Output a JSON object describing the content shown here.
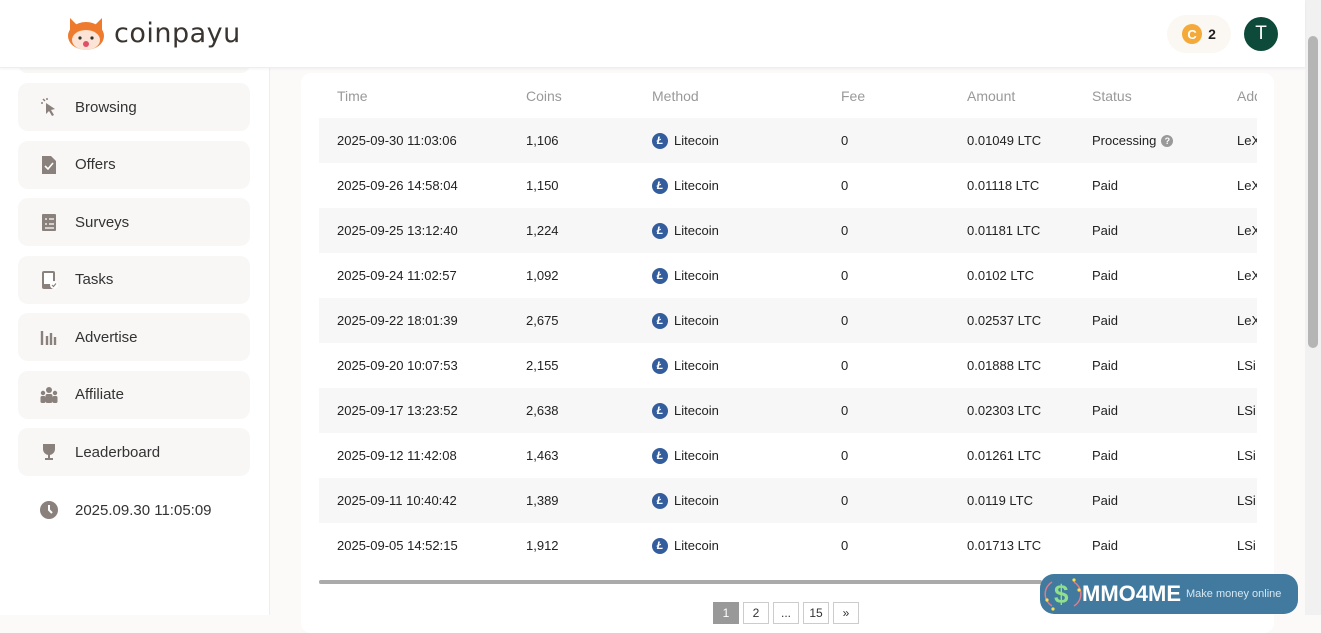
{
  "header": {
    "brand": "coinpayu",
    "coin_balance": "2",
    "avatar_letter": "T"
  },
  "sidebar": {
    "items": [
      {
        "label": "Browsing",
        "icon": "cursor-click-icon"
      },
      {
        "label": "Offers",
        "icon": "file-check-icon"
      },
      {
        "label": "Surveys",
        "icon": "clipboard-list-icon"
      },
      {
        "label": "Tasks",
        "icon": "tablet-check-icon"
      },
      {
        "label": "Advertise",
        "icon": "bar-chart-icon"
      },
      {
        "label": "Affiliate",
        "icon": "users-icon"
      },
      {
        "label": "Leaderboard",
        "icon": "trophy-icon"
      }
    ],
    "clock": "2025.09.30 11:05:09"
  },
  "table": {
    "columns": [
      "Time",
      "Coins",
      "Method",
      "Fee",
      "Amount",
      "Status",
      "Add"
    ],
    "rows": [
      {
        "time": "2025-09-30 11:03:06",
        "coins": "1,106",
        "method": "Litecoin",
        "fee": "0",
        "amount": "0.01049 LTC",
        "status": "Processing",
        "address": "LeX"
      },
      {
        "time": "2025-09-26 14:58:04",
        "coins": "1,150",
        "method": "Litecoin",
        "fee": "0",
        "amount": "0.01118 LTC",
        "status": "Paid",
        "address": "LeX"
      },
      {
        "time": "2025-09-25 13:12:40",
        "coins": "1,224",
        "method": "Litecoin",
        "fee": "0",
        "amount": "0.01181 LTC",
        "status": "Paid",
        "address": "LeX"
      },
      {
        "time": "2025-09-24 11:02:57",
        "coins": "1,092",
        "method": "Litecoin",
        "fee": "0",
        "amount": "0.0102 LTC",
        "status": "Paid",
        "address": "LeX"
      },
      {
        "time": "2025-09-22 18:01:39",
        "coins": "2,675",
        "method": "Litecoin",
        "fee": "0",
        "amount": "0.02537 LTC",
        "status": "Paid",
        "address": "LeX"
      },
      {
        "time": "2025-09-20 10:07:53",
        "coins": "2,155",
        "method": "Litecoin",
        "fee": "0",
        "amount": "0.01888 LTC",
        "status": "Paid",
        "address": "LSi"
      },
      {
        "time": "2025-09-17 13:23:52",
        "coins": "2,638",
        "method": "Litecoin",
        "fee": "0",
        "amount": "0.02303 LTC",
        "status": "Paid",
        "address": "LSi"
      },
      {
        "time": "2025-09-12 11:42:08",
        "coins": "1,463",
        "method": "Litecoin",
        "fee": "0",
        "amount": "0.01261 LTC",
        "status": "Paid",
        "address": "LSi"
      },
      {
        "time": "2025-09-11 10:40:42",
        "coins": "1,389",
        "method": "Litecoin",
        "fee": "0",
        "amount": "0.0119 LTC",
        "status": "Paid",
        "address": "LSi"
      },
      {
        "time": "2025-09-05 14:52:15",
        "coins": "1,912",
        "method": "Litecoin",
        "fee": "0",
        "amount": "0.01713 LTC",
        "status": "Paid",
        "address": "LSi"
      }
    ]
  },
  "pagination": {
    "pages": [
      "1",
      "2",
      "...",
      "15",
      "»"
    ],
    "current": "1"
  },
  "watermark": {
    "title": "MMO4ME",
    "subtitle": "Make money online"
  },
  "colors": {
    "litecoin": "#345d9d",
    "avatar": "#0d4a3a",
    "coin": "#f4a938"
  }
}
